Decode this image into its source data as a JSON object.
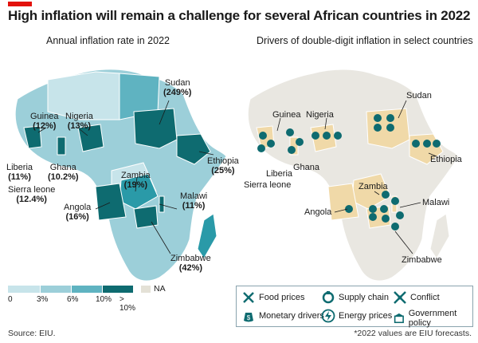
{
  "header": {
    "title": "High inflation will remain a challenge for several African countries in 2022"
  },
  "left_map": {
    "subtitle": "Annual inflation rate in 2022",
    "countries": [
      {
        "name": "Sudan",
        "value": "(249%)"
      },
      {
        "name": "Guinea",
        "value": "(12%)"
      },
      {
        "name": "Nigeria",
        "value": "(13%)"
      },
      {
        "name": "Ethiopia",
        "value": "(25%)"
      },
      {
        "name": "Liberia",
        "value": "(11%)"
      },
      {
        "name": "Ghana",
        "value": "(10.2%)"
      },
      {
        "name": "Sierra leone",
        "value": "(12.4%)"
      },
      {
        "name": "Zambia",
        "value": "(19%)"
      },
      {
        "name": "Malawi",
        "value": "(11%)"
      },
      {
        "name": "Angola",
        "value": "(16%)"
      },
      {
        "name": "Zimbabwe",
        "value": "(42%)"
      }
    ],
    "legend": {
      "ticks": [
        "0",
        "3%",
        "6%",
        "10%",
        "> 10%"
      ],
      "na_label": "NA",
      "colors": [
        "#c7e4ea",
        "#9ccfd9",
        "#5fb3c1",
        "#2a9aa8",
        "#0e6b70"
      ]
    }
  },
  "right_map": {
    "subtitle": "Drivers of double-digit inflation in select countries",
    "countries": [
      "Guinea",
      "Nigeria",
      "Sudan",
      "Liberia",
      "Ghana",
      "Ethiopia",
      "Sierra leone",
      "Zambia",
      "Malawi",
      "Angola",
      "Zimbabwe"
    ],
    "legend": [
      {
        "label": "Food prices",
        "icon": "fork-knife-icon"
      },
      {
        "label": "Supply chain",
        "icon": "supply-chain-icon"
      },
      {
        "label": "Conflict",
        "icon": "conflict-icon"
      },
      {
        "label": "Monetary drivers",
        "icon": "money-bag-icon"
      },
      {
        "label": "Energy prices",
        "icon": "lightning-icon"
      },
      {
        "label": "Government policy",
        "icon": "government-policy-icon"
      }
    ]
  },
  "footer": {
    "source": "Source: EIU.",
    "note": "*2022 values are EIU forecasts."
  },
  "colors": {
    "brand_red": "#e3120b",
    "icon_dark": "#0e6b70",
    "highlight": "#f0d9a8",
    "land_grey": "#e9e7e1"
  }
}
